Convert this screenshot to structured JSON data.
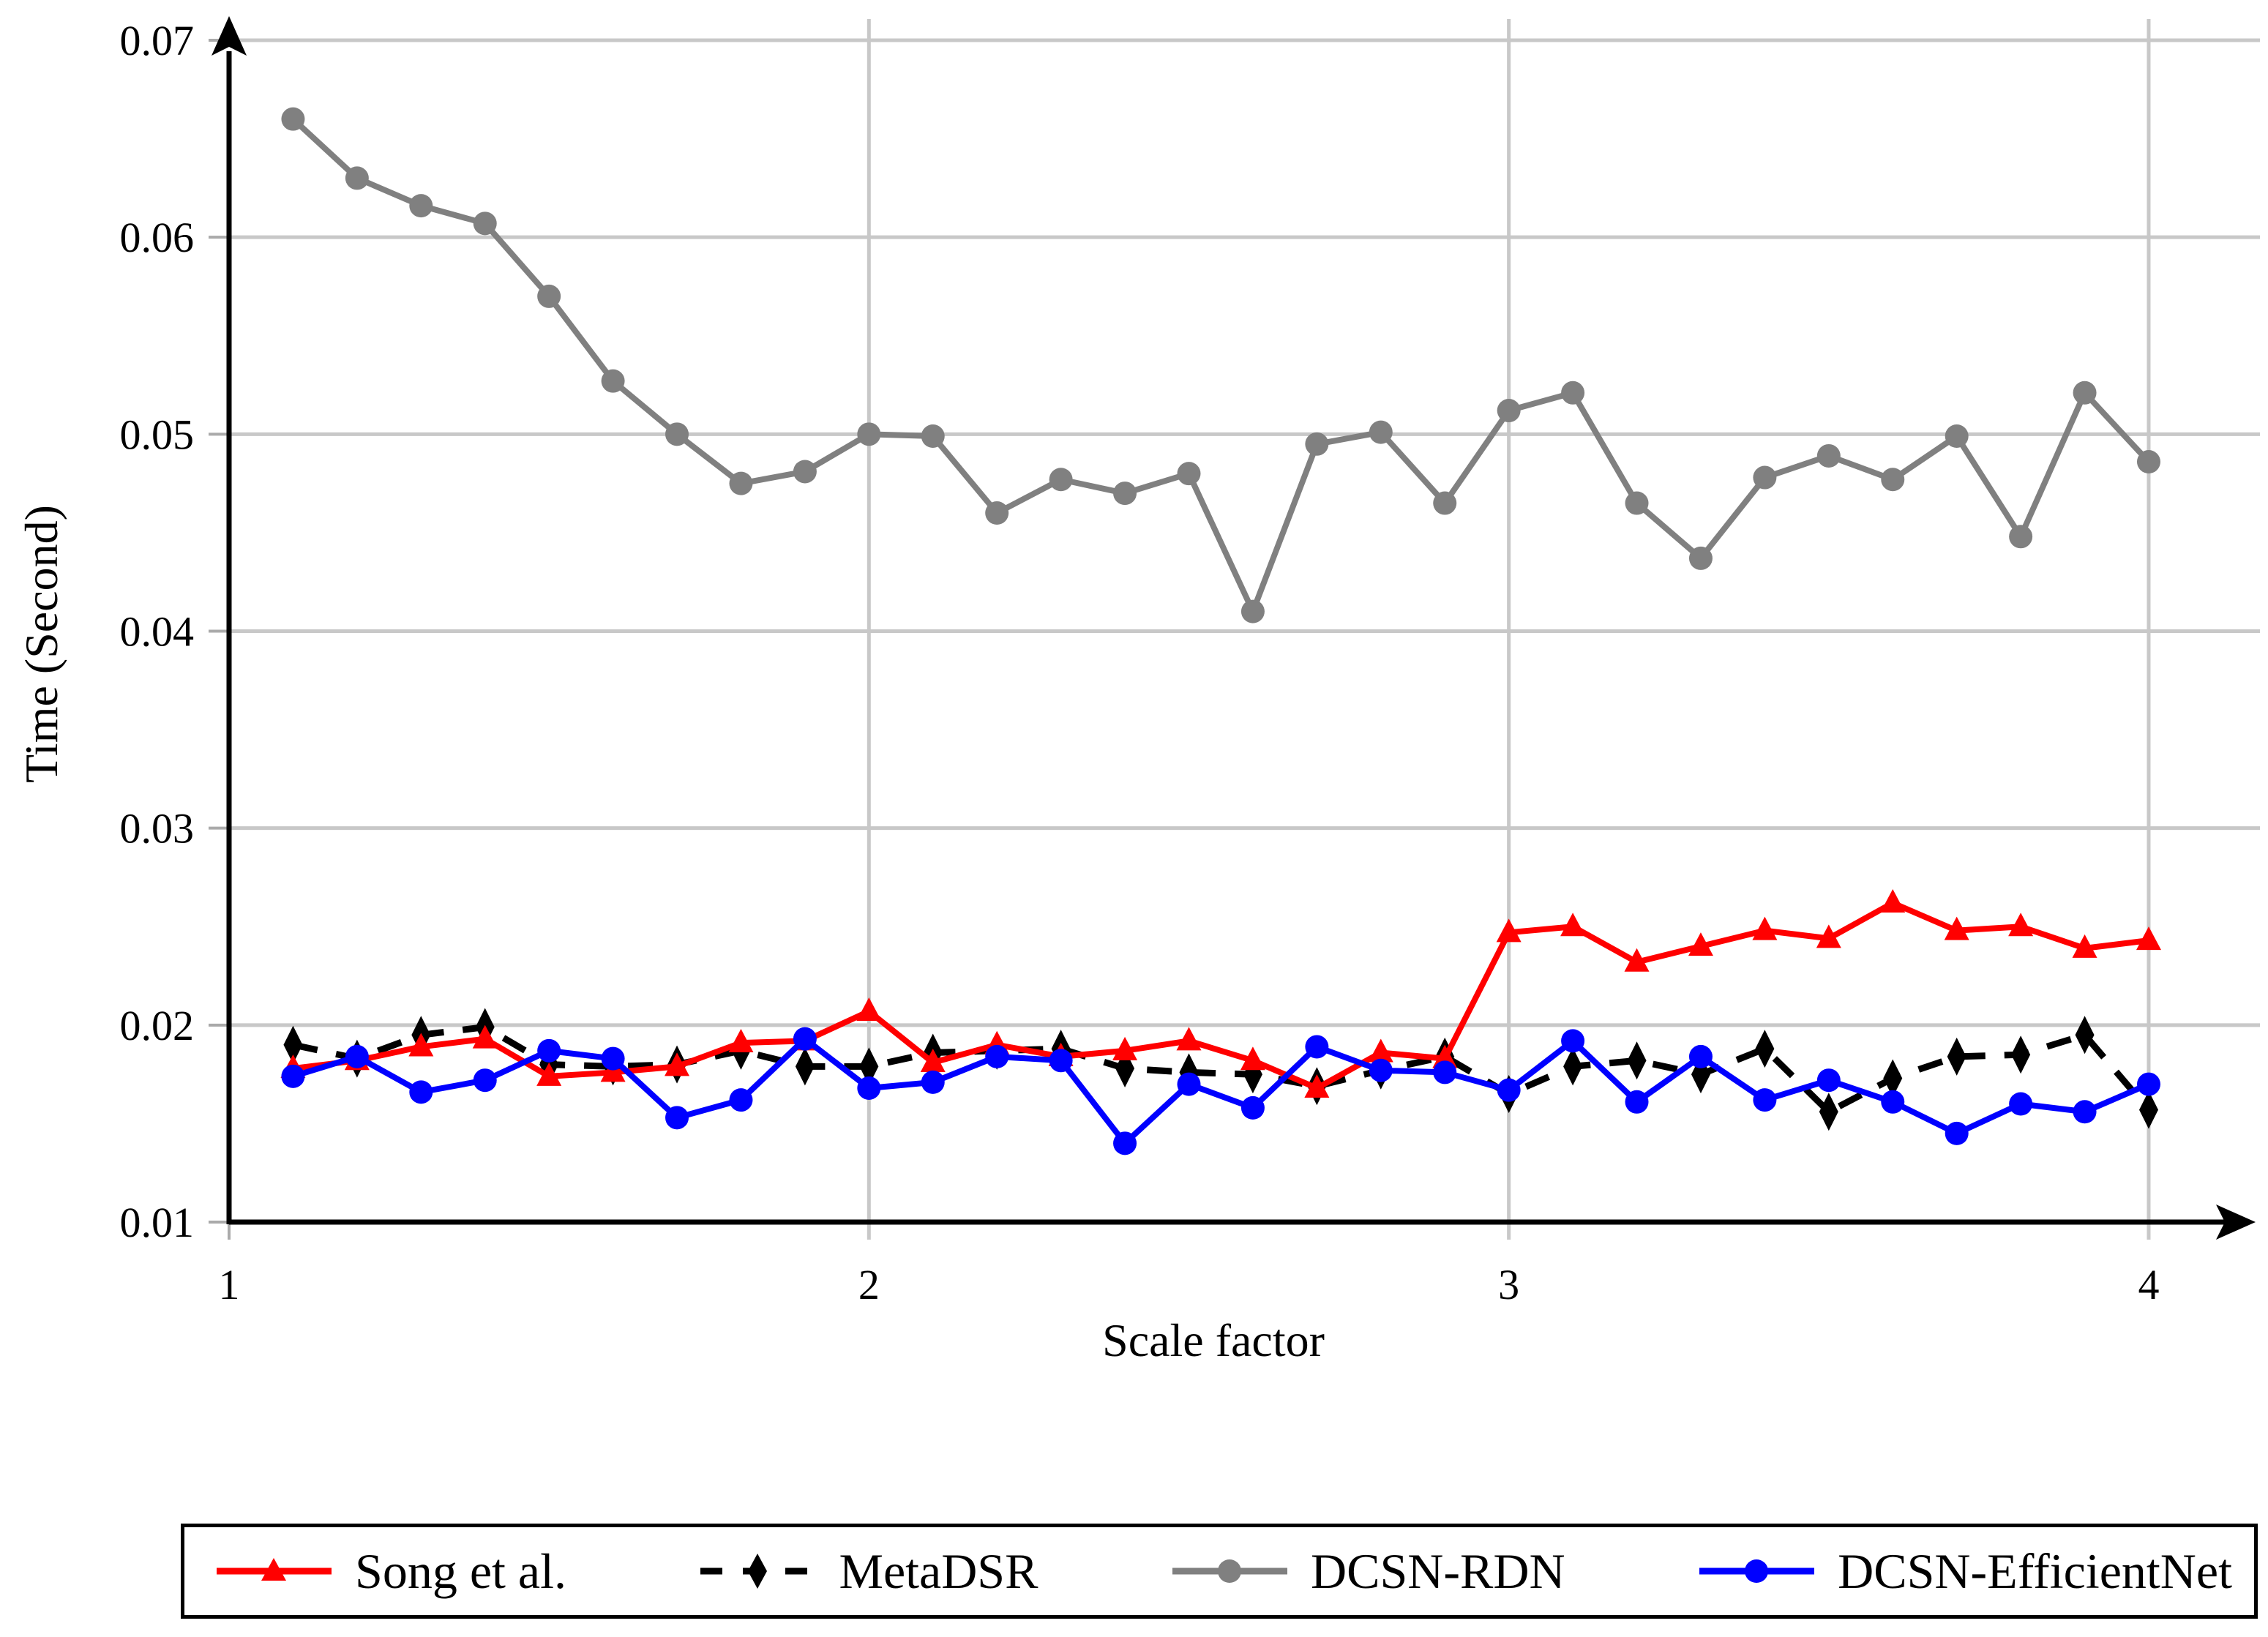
{
  "chart_data": {
    "type": "line",
    "title": "",
    "xlabel": "Scale factor",
    "ylabel": "Time (Second)",
    "xlim": [
      1,
      4.1
    ],
    "ylim": [
      0.01,
      0.07
    ],
    "grid": true,
    "legend_position": "bottom-box",
    "background": "#ffffff",
    "grid_color": "#c8c8c8",
    "axis_color": "#000000",
    "x_ticks": [
      1,
      2,
      3,
      4
    ],
    "x_tick_labels": [
      "1",
      "2",
      "3",
      "4"
    ],
    "y_ticks": [
      0.01,
      0.02,
      0.03,
      0.04,
      0.05,
      0.06,
      0.07
    ],
    "y_tick_labels": [
      "0.01",
      "0.02",
      "0.03",
      "0.04",
      "0.05",
      "0.06",
      "0.07"
    ],
    "x": [
      1.1,
      1.2,
      1.3,
      1.4,
      1.5,
      1.6,
      1.7,
      1.8,
      1.9,
      2.0,
      2.1,
      2.2,
      2.3,
      2.4,
      2.5,
      2.6,
      2.7,
      2.8,
      2.9,
      3.0,
      3.1,
      3.2,
      3.3,
      3.4,
      3.5,
      3.6,
      3.7,
      3.8,
      3.9,
      4.0
    ],
    "series": [
      {
        "name": "Song et al.",
        "color": "#ff0000",
        "marker": "triangle",
        "line_style": "solid",
        "values": [
          0.0178,
          0.0182,
          0.0189,
          0.0193,
          0.0174,
          0.0176,
          0.0179,
          0.0191,
          0.0192,
          0.0207,
          0.0181,
          0.019,
          0.0184,
          0.0187,
          0.0192,
          0.0182,
          0.0168,
          0.0186,
          0.0183,
          0.0247,
          0.025,
          0.0232,
          0.024,
          0.0248,
          0.0244,
          0.0262,
          0.0248,
          0.025,
          0.0239,
          0.0243
        ]
      },
      {
        "name": "MetaDSR",
        "color": "#000000",
        "marker": "diamond",
        "line_style": "dashed",
        "values": [
          0.019,
          0.0183,
          0.0195,
          0.0199,
          0.018,
          0.0179,
          0.018,
          0.0187,
          0.0179,
          0.0179,
          0.0186,
          0.0187,
          0.0188,
          0.0178,
          0.0176,
          0.0175,
          0.0169,
          0.0177,
          0.0184,
          0.0165,
          0.0179,
          0.0182,
          0.0175,
          0.0188,
          0.0156,
          0.0173,
          0.0184,
          0.0185,
          0.0195,
          0.0157
        ]
      },
      {
        "name": "DCSN-RDN",
        "color": "#808080",
        "marker": "circle",
        "line_style": "solid",
        "values": [
          0.066,
          0.063,
          0.0616,
          0.0607,
          0.057,
          0.0527,
          0.05,
          0.0475,
          0.0481,
          0.05,
          0.0499,
          0.046,
          0.0477,
          0.047,
          0.048,
          0.041,
          0.0495,
          0.0501,
          0.0465,
          0.0512,
          0.0521,
          0.0465,
          0.0437,
          0.0478,
          0.0489,
          0.0477,
          0.0499,
          0.0448,
          0.0521,
          0.0486
        ]
      },
      {
        "name": "DCSN-EfficientNet",
        "color": "#0000ff",
        "marker": "circle",
        "line_style": "solid",
        "values": [
          0.0174,
          0.0184,
          0.0166,
          0.0172,
          0.0187,
          0.0183,
          0.0153,
          0.0162,
          0.0193,
          0.0168,
          0.0171,
          0.0184,
          0.0182,
          0.014,
          0.017,
          0.0158,
          0.0189,
          0.0177,
          0.0176,
          0.0167,
          0.0192,
          0.0161,
          0.0184,
          0.0162,
          0.0172,
          0.0161,
          0.0145,
          0.016,
          0.0156,
          0.017
        ]
      }
    ]
  }
}
